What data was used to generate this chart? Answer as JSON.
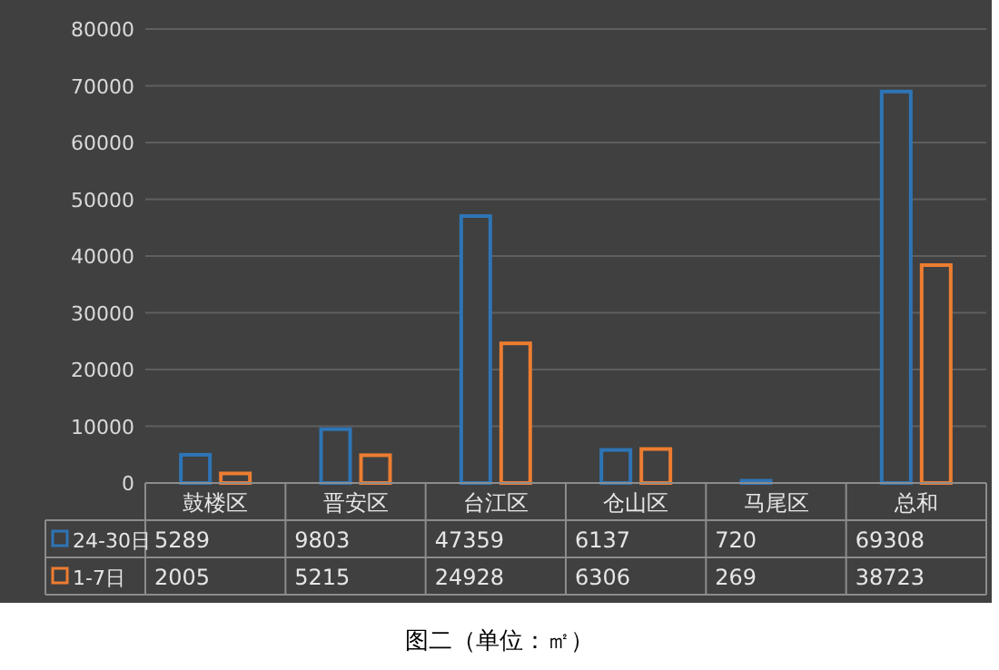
{
  "chart_data": {
    "type": "bar",
    "categories": [
      "鼓楼区",
      "晋安区",
      "台江区",
      "仓山区",
      "马尾区",
      "总和"
    ],
    "series": [
      {
        "name": "24-30日",
        "color": "#2e75b6",
        "values": [
          5289,
          9803,
          47359,
          6137,
          720,
          69308
        ]
      },
      {
        "name": "1-7日",
        "color": "#ed7d31",
        "values": [
          2005,
          5215,
          24928,
          6306,
          269,
          38723
        ]
      }
    ],
    "ylim": [
      0,
      80000
    ],
    "yticks": [
      0,
      10000,
      20000,
      30000,
      40000,
      50000,
      60000,
      70000,
      80000
    ],
    "grid": "y",
    "legend": "bottom left",
    "data_labels": true,
    "annotations": [
      "图二（单位：㎡）"
    ]
  }
}
